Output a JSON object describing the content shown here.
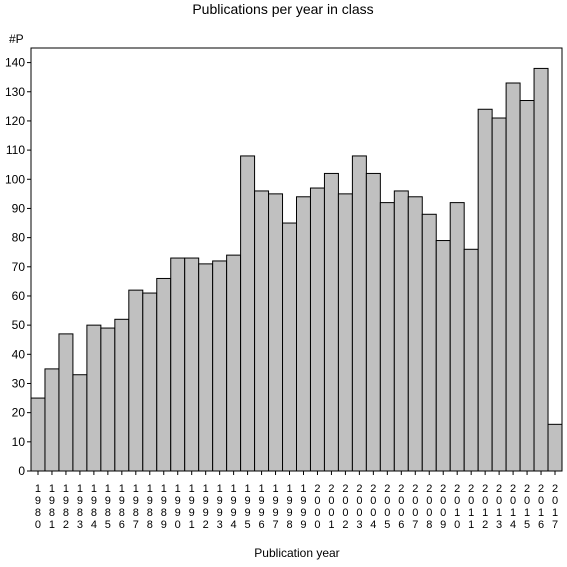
{
  "chart_data": {
    "type": "bar",
    "title": "Publications per year in class",
    "xlabel": "Publication year",
    "ylabel": "#P",
    "ylim": [
      0,
      145
    ],
    "yticks": [
      0,
      10,
      20,
      30,
      40,
      50,
      60,
      70,
      80,
      90,
      100,
      110,
      120,
      130,
      140
    ],
    "grid": false,
    "legend": "none",
    "bar_color": "#c0c0c0",
    "categories": [
      "1980",
      "1981",
      "1982",
      "1983",
      "1984",
      "1985",
      "1986",
      "1987",
      "1988",
      "1989",
      "1990",
      "1991",
      "1992",
      "1993",
      "1994",
      "1995",
      "1996",
      "1997",
      "1998",
      "1999",
      "2000",
      "2001",
      "2002",
      "2003",
      "2004",
      "2005",
      "2006",
      "2007",
      "2008",
      "2009",
      "2010",
      "2011",
      "2012",
      "2013",
      "2014",
      "2015",
      "2016",
      "2017"
    ],
    "values": [
      25,
      35,
      47,
      33,
      50,
      49,
      52,
      62,
      61,
      66,
      73,
      73,
      71,
      72,
      74,
      108,
      96,
      95,
      85,
      94,
      97,
      102,
      95,
      108,
      102,
      92,
      96,
      94,
      88,
      79,
      92,
      76,
      124,
      121,
      133,
      127,
      138,
      16
    ]
  }
}
